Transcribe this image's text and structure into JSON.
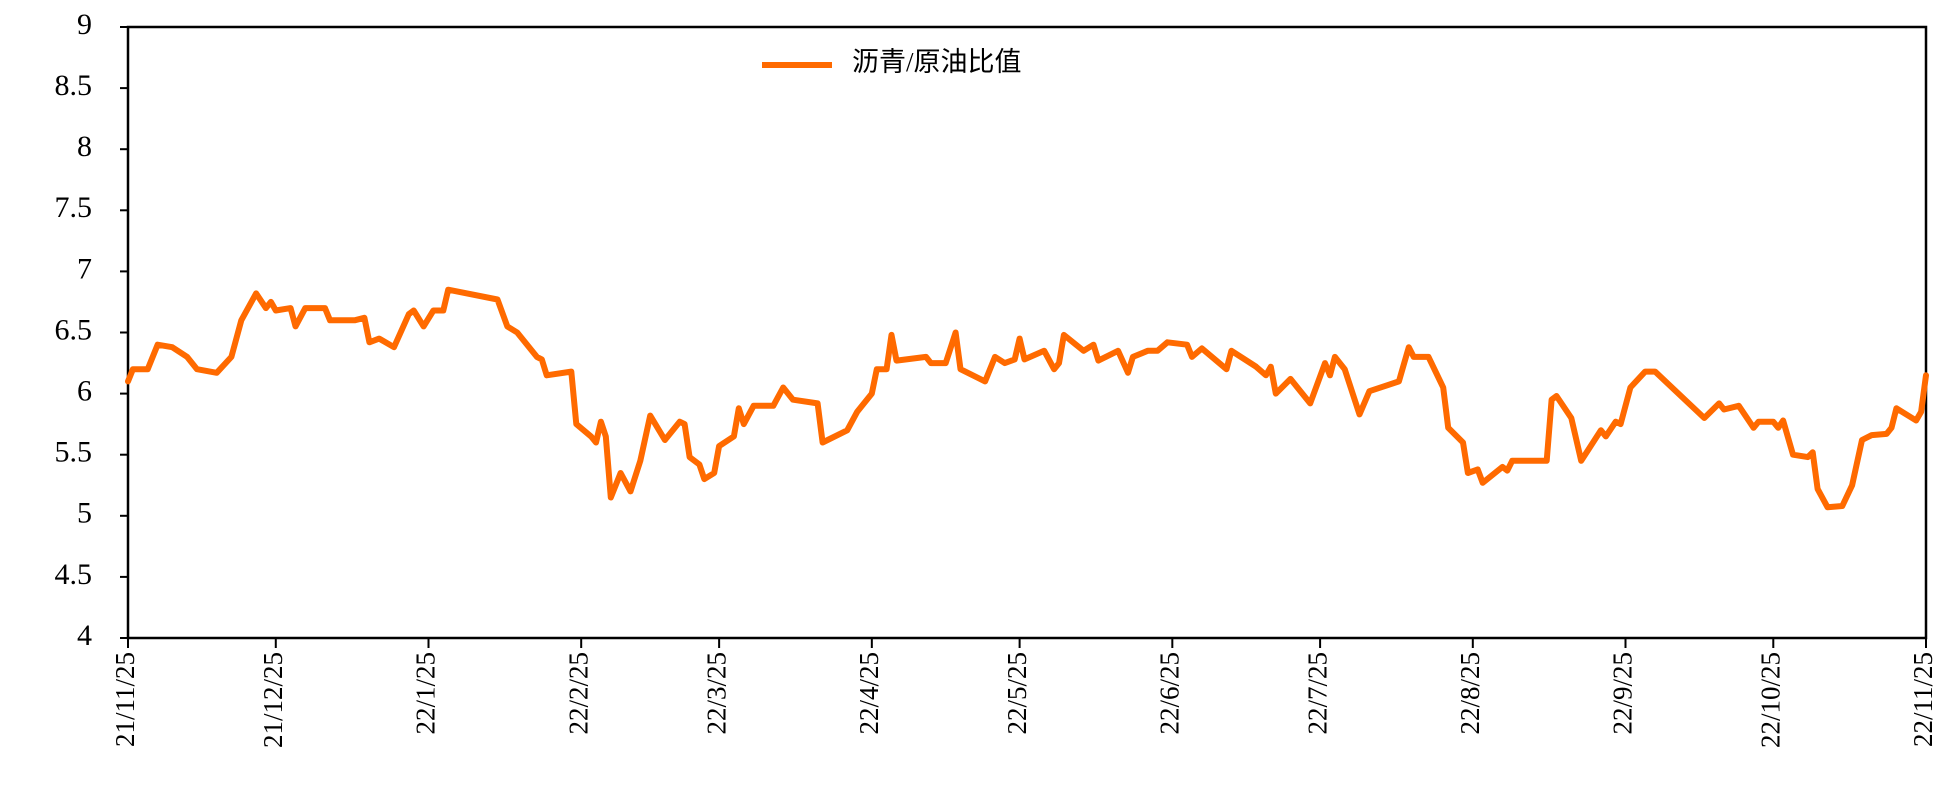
{
  "chart_data": {
    "type": "line",
    "x": [
      "21/11/25",
      "21/11/26",
      "21/11/29",
      "21/12/1",
      "21/12/4",
      "21/12/7",
      "21/12/9",
      "21/12/13",
      "21/12/16",
      "21/12/18",
      "21/12/21",
      "21/12/23",
      "21/12/24",
      "21/12/25",
      "21/12/28",
      "21/12/29",
      "21/12/31",
      "22/1/4",
      "22/1/5",
      "22/1/10",
      "22/1/12",
      "22/1/13",
      "22/1/15",
      "22/1/18",
      "22/1/21",
      "22/1/22",
      "22/1/24",
      "22/1/26",
      "22/1/28",
      "22/1/29",
      "22/2/8",
      "22/2/10",
      "22/2/12",
      "22/2/16",
      "22/2/17",
      "22/2/18",
      "22/2/23",
      "22/2/24",
      "22/2/27",
      "22/2/28",
      "22/3/1",
      "22/3/2",
      "22/3/3",
      "22/3/5",
      "22/3/7",
      "22/3/9",
      "22/3/11",
      "22/3/14",
      "22/3/17",
      "22/3/18",
      "22/3/19",
      "22/3/21",
      "22/3/22",
      "22/3/24",
      "22/3/25",
      "22/3/28",
      "22/3/29",
      "22/3/30",
      "22/4/1",
      "22/4/5",
      "22/4/7",
      "22/4/9",
      "22/4/14",
      "22/4/15",
      "22/4/20",
      "22/4/22",
      "22/4/25",
      "22/4/26",
      "22/4/28",
      "22/4/29",
      "22/4/30",
      "22/5/6",
      "22/5/7",
      "22/5/10",
      "22/5/12",
      "22/5/13",
      "22/5/18",
      "22/5/20",
      "22/5/22",
      "22/5/24",
      "22/5/25",
      "22/5/26",
      "22/5/30",
      "22/6/1",
      "22/6/2",
      "22/6/3",
      "22/6/7",
      "22/6/9",
      "22/6/10",
      "22/6/14",
      "22/6/16",
      "22/6/17",
      "22/6/20",
      "22/6/22",
      "22/6/24",
      "22/6/28",
      "22/6/29",
      "22/7/1",
      "22/7/6",
      "22/7/7",
      "22/7/12",
      "22/7/14",
      "22/7/15",
      "22/7/16",
      "22/7/19",
      "22/7/23",
      "22/7/26",
      "22/7/27",
      "22/7/28",
      "22/7/30",
      "22/8/2",
      "22/8/4",
      "22/8/10",
      "22/8/12",
      "22/8/13",
      "22/8/16",
      "22/8/19",
      "22/8/20",
      "22/8/23",
      "22/8/24",
      "22/8/26",
      "22/8/27",
      "22/8/31",
      "22/9/1",
      "22/9/2",
      "22/9/9",
      "22/9/10",
      "22/9/11",
      "22/9/14",
      "22/9/16",
      "22/9/20",
      "22/9/21",
      "22/9/23",
      "22/9/24",
      "22/9/26",
      "22/9/29",
      "22/10/1",
      "22/10/11",
      "22/10/14",
      "22/10/15",
      "22/10/18",
      "22/10/21",
      "22/10/22",
      "22/10/25",
      "22/10/26",
      "22/10/27",
      "22/10/29",
      "22/11/1",
      "22/11/2",
      "22/11/3",
      "22/11/5",
      "22/11/8",
      "22/11/10",
      "22/11/12",
      "22/11/14",
      "22/11/17",
      "22/11/18",
      "22/11/19",
      "22/11/23",
      "22/11/24",
      "22/11/25"
    ],
    "series": [
      {
        "name": "沥青/原油比值",
        "color": "#ff6a00",
        "values": [
          6.1,
          6.2,
          6.2,
          6.4,
          6.38,
          6.3,
          6.2,
          6.17,
          6.3,
          6.6,
          6.82,
          6.7,
          6.75,
          6.68,
          6.7,
          6.55,
          6.7,
          6.7,
          6.6,
          6.6,
          6.62,
          6.42,
          6.45,
          6.38,
          6.65,
          6.68,
          6.55,
          6.68,
          6.68,
          6.85,
          6.77,
          6.55,
          6.5,
          6.3,
          6.28,
          6.15,
          6.18,
          5.75,
          5.65,
          5.6,
          5.77,
          5.65,
          5.15,
          5.35,
          5.2,
          5.45,
          5.82,
          5.62,
          5.77,
          5.75,
          5.48,
          5.42,
          5.3,
          5.35,
          5.57,
          5.65,
          5.88,
          5.75,
          5.9,
          5.9,
          6.05,
          5.95,
          5.92,
          5.6,
          5.7,
          5.85,
          6.0,
          6.2,
          6.2,
          6.48,
          6.27,
          6.3,
          6.25,
          6.25,
          6.5,
          6.2,
          6.1,
          6.3,
          6.25,
          6.28,
          6.45,
          6.28,
          6.35,
          6.2,
          6.25,
          6.48,
          6.35,
          6.4,
          6.27,
          6.35,
          6.17,
          6.3,
          6.35,
          6.35,
          6.42,
          6.4,
          6.3,
          6.37,
          6.2,
          6.35,
          6.22,
          6.15,
          6.22,
          6.0,
          6.12,
          5.92,
          6.25,
          6.15,
          6.3,
          6.2,
          5.83,
          6.02,
          6.1,
          6.38,
          6.3,
          6.3,
          6.05,
          5.72,
          5.6,
          5.35,
          5.38,
          5.27,
          5.4,
          5.37,
          5.45,
          5.45,
          5.95,
          5.98,
          5.8,
          5.45,
          5.7,
          5.65,
          5.77,
          5.75,
          6.05,
          6.18,
          6.18,
          5.8,
          5.92,
          5.87,
          5.9,
          5.72,
          5.77,
          5.77,
          5.72,
          5.78,
          5.5,
          5.48,
          5.52,
          5.22,
          5.07,
          5.08,
          5.25,
          5.62,
          5.66,
          5.67,
          5.72,
          5.88,
          5.78,
          5.85,
          6.15
        ]
      }
    ],
    "xlim": [
      "21/11/25",
      "22/11/25"
    ],
    "xticks": [
      "21/11/25",
      "21/12/25",
      "22/1/25",
      "22/2/25",
      "22/3/25",
      "22/4/25",
      "22/5/25",
      "22/6/25",
      "22/7/25",
      "22/8/25",
      "22/9/25",
      "22/10/25",
      "22/11/25"
    ],
    "ylim": [
      4,
      9
    ],
    "yticks": [
      4,
      4.5,
      5,
      5.5,
      6,
      6.5,
      7,
      7.5,
      8,
      8.5,
      9
    ],
    "grid": false,
    "legend": "top"
  }
}
